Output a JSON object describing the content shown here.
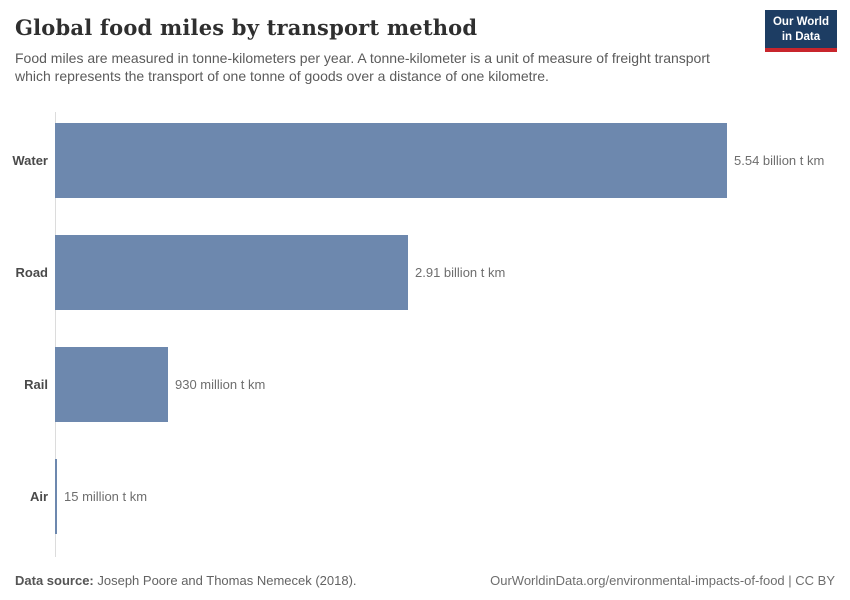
{
  "header": {
    "title": "Global food miles by transport method",
    "subtitle": "Food miles are measured in tonne-kilometers per year. A tonne-kilometer is a unit of measure of freight transport which represents the transport of one tonne of goods over a distance of one kilometre.",
    "logo": {
      "line1": "Our World",
      "line2": "in Data",
      "bg_color": "#1d3d63",
      "accent_color": "#c8252c"
    }
  },
  "chart_data": {
    "type": "bar",
    "orientation": "horizontal",
    "title": "Global food miles by transport method",
    "unit": "tonne-kilometers per year",
    "categories": [
      "Water",
      "Road",
      "Rail",
      "Air"
    ],
    "values": [
      5540000000,
      2910000000,
      930000000,
      15000000
    ],
    "value_labels": [
      "5.54 billion t km",
      "2.91 billion t km",
      "930 million t km",
      "15 million t km"
    ],
    "xlim": [
      0,
      5540000000
    ],
    "grid": false,
    "legend": "none",
    "bar_color": "#6d88ae",
    "axis_color": "#dcdcdc"
  },
  "footer": {
    "source_label": "Data source:",
    "source_text": " Joseph Poore and Thomas Nemecek (2018).",
    "link_text": "OurWorldinData.org/environmental-impacts-of-food | CC BY"
  }
}
